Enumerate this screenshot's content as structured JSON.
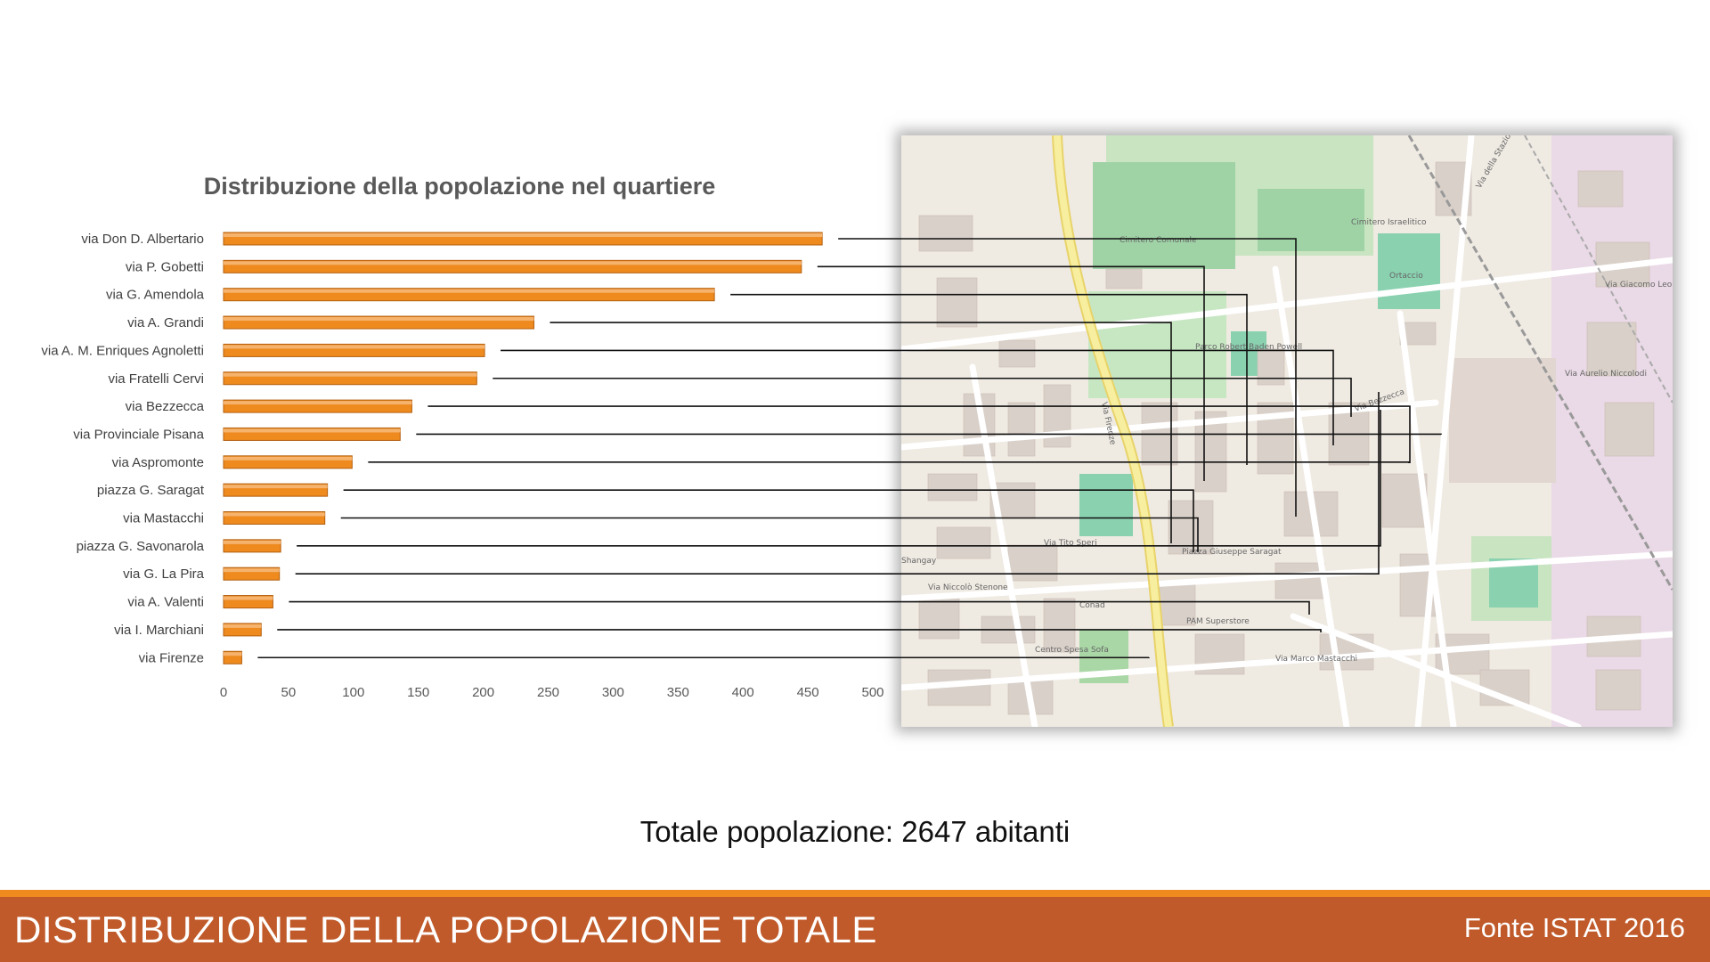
{
  "chart_data": {
    "type": "bar",
    "orientation": "horizontal",
    "title": "Distribuzione della popolazione nel quartiere",
    "categories": [
      "via Don D. Albertario",
      "via P. Gobetti",
      "via G. Amendola",
      "via A. Grandi",
      "via A. M. Enriques Agnoletti",
      "via Fratelli Cervi",
      "via Bezzecca",
      "via Provinciale Pisana",
      "via Aspromonte",
      "piazza G. Saragat",
      "via Mastacchi",
      "piazza G. Savonarola",
      "via G. La Pira",
      "via A. Valenti",
      "via I. Marchiani",
      "via Firenze"
    ],
    "values": [
      461,
      445,
      378,
      239,
      201,
      195,
      145,
      136,
      99,
      80,
      78,
      44,
      43,
      38,
      29,
      14
    ],
    "xlim": [
      0,
      500
    ],
    "xticks": [
      0,
      50,
      100,
      150,
      200,
      250,
      300,
      350,
      400,
      450,
      500
    ],
    "bar_color": "#ee8a1e",
    "grid": false,
    "legend": "none"
  },
  "map": {
    "labels": {
      "cimitero_comunale": "Cimitero Comunale",
      "cimitero_israelitico": "Cimitero Israelitico",
      "parco": "Parco Robert Baden Powell",
      "piazza": "Piazza Giuseppe Saragat",
      "shangay": "Shangay",
      "orti": "Ortaccio",
      "conad": "Conad",
      "pam": "PAM Superstore",
      "centro": "Centro Spesa Sofa",
      "via_firenze": "Via Firenze",
      "via_bezzecca": "Via Bezzecca",
      "via_stazione": "Via della Stazione",
      "via_leopardi": "Via Giacomo Leopardi",
      "via_niccolodi": "Via Aurelio Niccolodi",
      "via_marchiani": "Via Marco Mastacchi",
      "via_trebbio": "Via Tito Speri",
      "via_niccolo": "Via Niccolò Stenone"
    }
  },
  "total_text": "Totale popolazione: 2647 abitanti",
  "footer": {
    "title": "DISTRIBUZIONE DELLA POPOLAZIONE TOTALE",
    "source": "Fonte ISTAT 2016"
  },
  "colors": {
    "footer_bg": "#c05a2a",
    "footer_accent": "#ee8a1e",
    "map_bg": "#efeae2",
    "map_green": "#add19e",
    "map_building": "#d9d0c9"
  }
}
